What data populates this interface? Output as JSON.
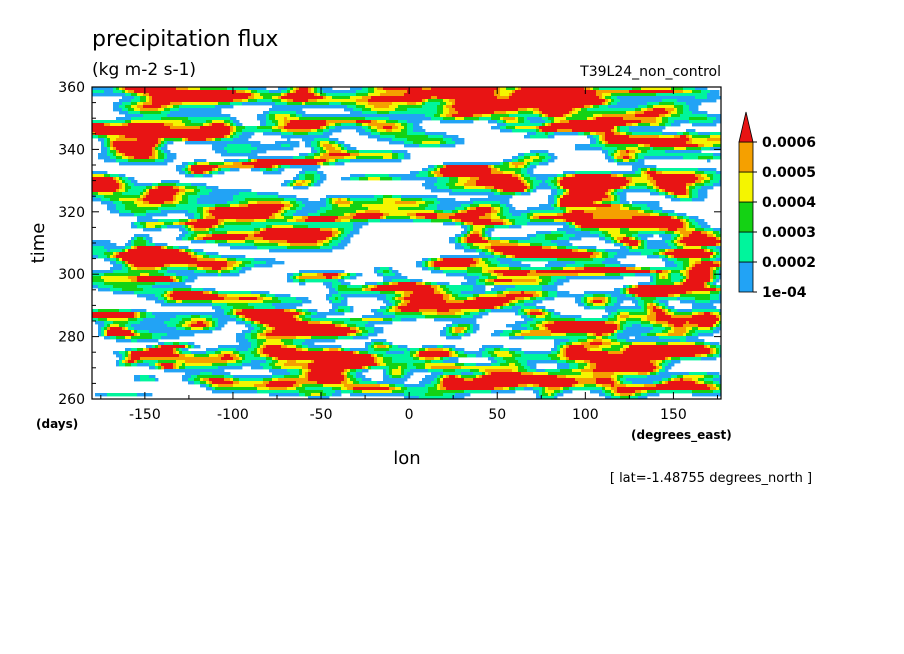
{
  "chart_data": {
    "type": "heatmap",
    "title": "precipitation flux",
    "subtitle": "(kg m-2 s-1)",
    "run_label": "T39L24_non_control",
    "xlabel": "lon",
    "x_unit": "(degrees_east)",
    "ylabel": "time",
    "y_unit": "(days)",
    "xlim": [
      -180,
      177
    ],
    "ylim": [
      260,
      360
    ],
    "x_ticks": [
      -150,
      -100,
      -50,
      0,
      50,
      100,
      150
    ],
    "x_tick_labels": [
      "-150",
      "-100",
      "-50",
      "0",
      "50",
      "100",
      "150"
    ],
    "y_ticks": [
      260,
      280,
      300,
      320,
      340,
      360
    ],
    "y_tick_labels": [
      "260",
      "280",
      "300",
      "320",
      "340",
      "360"
    ],
    "annotation": "[ lat=-1.48755 degrees_north ]",
    "grid": false,
    "legend_placement": "right",
    "contour_levels": [
      0.0001,
      0.0002,
      0.0003,
      0.0004,
      0.0005,
      0.0006
    ],
    "colorbar_labels": [
      "1e-04",
      "0.0002",
      "0.0003",
      "0.0004",
      "0.0005",
      "0.0006"
    ],
    "colors": [
      "#ffffff",
      "#22a3f5",
      "#00f59c",
      "#14d214",
      "#f5f500",
      "#f5a000",
      "#e81414"
    ]
  }
}
